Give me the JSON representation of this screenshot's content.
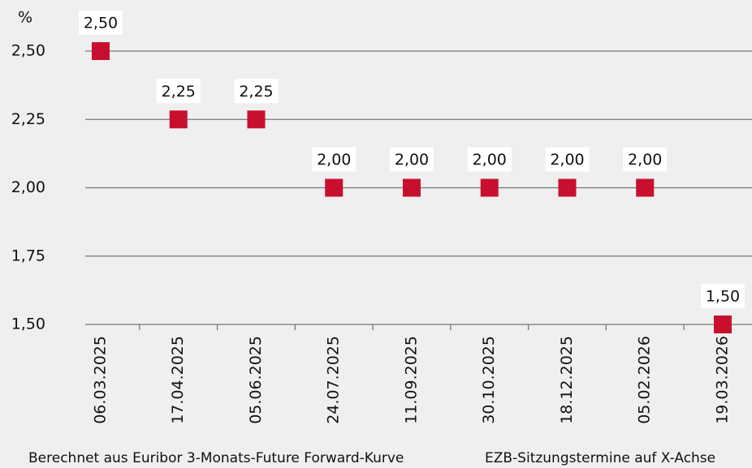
{
  "chart_data": {
    "type": "scatter",
    "y_unit": "%",
    "categories": [
      "06.03.2025",
      "17.04.2025",
      "05.06.2025",
      "24.07.2025",
      "11.09.2025",
      "30.10.2025",
      "18.12.2025",
      "05.02.2026",
      "19.03.2026"
    ],
    "values": [
      2.5,
      2.25,
      2.25,
      2.0,
      2.0,
      2.0,
      2.0,
      2.0,
      1.5
    ],
    "value_labels": [
      "2,50",
      "2,25",
      "2,25",
      "2,00",
      "2,00",
      "2,00",
      "2,00",
      "2,00",
      "1,50"
    ],
    "color": "#c8102e",
    "ylim": [
      1.5,
      2.5
    ],
    "yticks": [
      {
        "value": 1.5,
        "label": "1,50"
      },
      {
        "value": 1.75,
        "label": "1,75"
      },
      {
        "value": 2.0,
        "label": "2,00"
      },
      {
        "value": 2.25,
        "label": "2,25"
      },
      {
        "value": 2.5,
        "label": "2,50"
      }
    ],
    "grid": true,
    "annotations": [
      "Berechnet aus Euribor 3-Monats-Future Forward-Kurve",
      "EZB-Sitzungstermine auf X-Achse"
    ]
  }
}
